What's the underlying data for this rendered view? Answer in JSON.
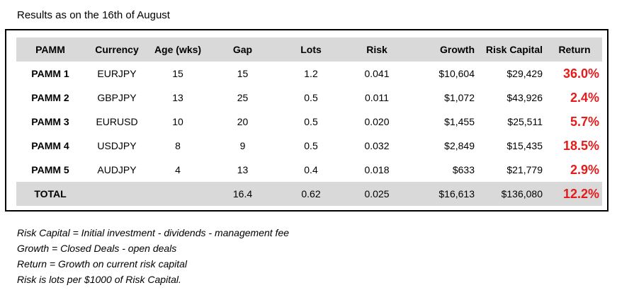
{
  "heading": "Results as on the 16th of August",
  "table": {
    "headers": [
      "PAMM",
      "Currency",
      "Age (wks)",
      "Gap",
      "Lots",
      "Risk",
      "Growth",
      "Risk Capital",
      "Return"
    ],
    "rows": [
      [
        "PAMM 1",
        "EURJPY",
        "15",
        "15",
        "1.2",
        "0.041",
        "$10,604",
        "$29,429",
        "36.0%"
      ],
      [
        "PAMM 2",
        "GBPJPY",
        "13",
        "25",
        "0.5",
        "0.011",
        "$1,072",
        "$43,926",
        "2.4%"
      ],
      [
        "PAMM 3",
        "EURUSD",
        "10",
        "20",
        "0.5",
        "0.020",
        "$1,455",
        "$25,511",
        "5.7%"
      ],
      [
        "PAMM 4",
        "USDJPY",
        "8",
        "9",
        "0.5",
        "0.032",
        "$2,849",
        "$15,435",
        "18.5%"
      ],
      [
        "PAMM 5",
        "AUDJPY",
        "4",
        "13",
        "0.4",
        "0.018",
        "$633",
        "$21,779",
        "2.9%"
      ]
    ],
    "total": [
      "TOTAL",
      "",
      "",
      "16.4",
      "0.62",
      "0.025",
      "$16,613",
      "$136,080",
      "12.2%"
    ]
  },
  "notes": [
    "Risk Capital = Initial investment - dividends - management fee",
    "Growth = Closed Deals - open deals",
    "Return = Growth on current risk capital",
    "Risk is lots per $1000 of Risk Capital."
  ],
  "colors": {
    "header_bg": "#d9d9d9",
    "return_red": "#e31b1b"
  }
}
